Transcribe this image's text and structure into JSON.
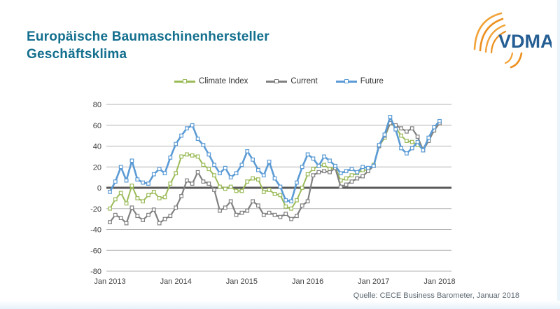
{
  "header": {
    "title_line1": "Europäische Baumaschinenhersteller",
    "title_line2": "Geschäftsklima",
    "logo_text": "VDMA"
  },
  "footer": {
    "source": "Quelle: CECE Business Barometer, Januar 2018"
  },
  "colors": {
    "title": "#136f8e",
    "logo_blue": "#255e93",
    "logo_orange_1": "#f2a237",
    "logo_orange_2": "#ec8f1e",
    "grid_line": "#b3b3b3",
    "zero_line": "#595959",
    "axis_text": "#3f3f3f",
    "source_text": "#5b6770"
  },
  "chart_data": {
    "type": "line",
    "title": "",
    "xlabel": "",
    "ylabel": "",
    "x_start": "Jan 2013",
    "x_end": "Jan 2018",
    "x_interval": "monthly",
    "x_tick_labels": [
      "Jan 2013",
      "Jan 2014",
      "Jan 2015",
      "Jan 2016",
      "Jan 2017",
      "Jan 2018"
    ],
    "x_tick_indices": [
      0,
      12,
      24,
      36,
      48,
      60
    ],
    "y_ticks": [
      80,
      60,
      40,
      20,
      0,
      -20,
      -40,
      -60,
      -80
    ],
    "ylim": [
      -80,
      80
    ],
    "grid": true,
    "legend_position": "top-center",
    "series": [
      {
        "name": "Climate Index",
        "color": "#9bbb59",
        "marker": "square",
        "line_width": 2.0,
        "values": [
          -20,
          -11,
          -5,
          -15,
          2,
          -10,
          -13,
          -7,
          -4,
          -10,
          -9,
          4,
          14,
          30,
          32,
          31,
          30,
          22,
          18,
          12,
          1,
          -1,
          1,
          -3,
          -3,
          6,
          9,
          8,
          -4,
          -2,
          -6,
          -7,
          -18,
          -20,
          -12,
          0,
          13,
          18,
          21,
          22,
          18,
          20,
          7,
          9,
          12,
          14,
          17,
          17,
          22,
          40,
          48,
          62,
          58,
          50,
          45,
          44,
          41,
          37,
          46,
          55,
          62
        ]
      },
      {
        "name": "Current",
        "color": "#808080",
        "marker": "square",
        "line_width": 2.2,
        "values": [
          -33,
          -26,
          -29,
          -34,
          -19,
          -27,
          -31,
          -26,
          -21,
          -34,
          -30,
          -27,
          -19,
          -8,
          7,
          4,
          15,
          6,
          4,
          -2,
          -22,
          -19,
          -13,
          -26,
          -24,
          -22,
          -13,
          -17,
          -26,
          -24,
          -26,
          -28,
          -25,
          -30,
          -27,
          -17,
          -13,
          12,
          15,
          16,
          15,
          19,
          1,
          3,
          6,
          9,
          11,
          16,
          21,
          40,
          50,
          62,
          60,
          57,
          54,
          57,
          49,
          36,
          45,
          55,
          62
        ]
      },
      {
        "name": "Future",
        "color": "#5b9bd5",
        "marker": "square",
        "line_width": 2.6,
        "values": [
          -4,
          6,
          20,
          7,
          26,
          8,
          5,
          4,
          13,
          18,
          14,
          29,
          42,
          50,
          57,
          60,
          47,
          41,
          32,
          22,
          14,
          19,
          10,
          14,
          22,
          35,
          27,
          17,
          12,
          25,
          9,
          1,
          -12,
          -13,
          5,
          20,
          32,
          28,
          21,
          30,
          26,
          21,
          14,
          16,
          18,
          15,
          20,
          19,
          21,
          41,
          51,
          68,
          56,
          38,
          33,
          38,
          44,
          36,
          48,
          58,
          64
        ]
      }
    ]
  }
}
